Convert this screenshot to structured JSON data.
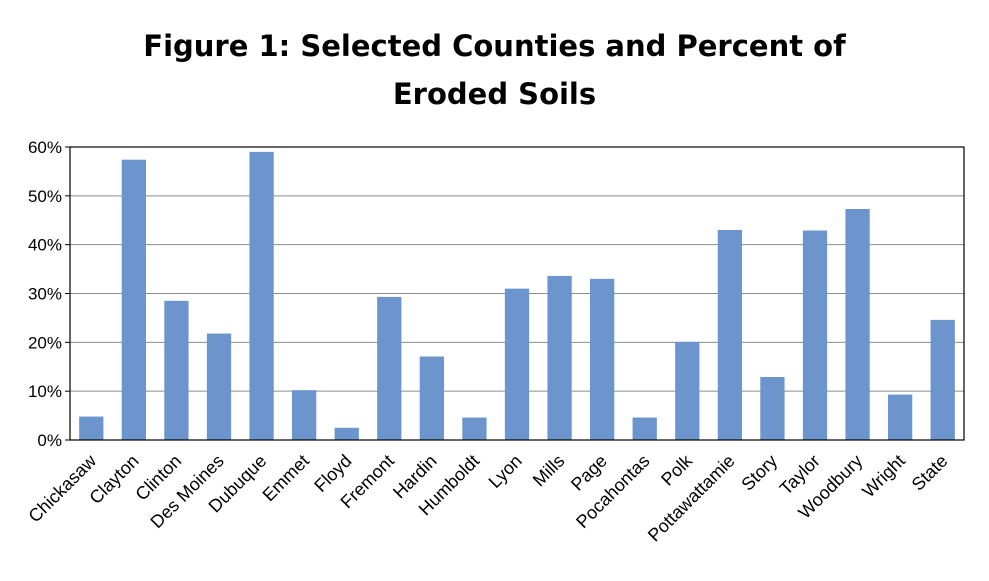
{
  "chart_data": {
    "type": "bar",
    "title_line1": "Figure 1: Selected Counties and Percent of",
    "title_line2": "Eroded Soils",
    "xlabel": "",
    "ylabel": "",
    "ylim": [
      0,
      60
    ],
    "yticks": [
      "0%",
      "10%",
      "20%",
      "30%",
      "40%",
      "50%",
      "60%"
    ],
    "grid": true,
    "legend": "none",
    "bar_color": "#6b95cc",
    "categories": [
      "Chickasaw",
      "Clayton",
      "Clinton",
      "Des Moines",
      "Dubuque",
      "Emmet",
      "Floyd",
      "Fremont",
      "Hardin",
      "Humboldt",
      "Lyon",
      "Mills",
      "Page",
      "Pocahontas",
      "Polk",
      "Pottawattamie",
      "Story",
      "Taylor",
      "Woodbury",
      "Wright",
      "State"
    ],
    "values": [
      4.8,
      57.4,
      28.5,
      21.8,
      59.0,
      10.2,
      2.5,
      29.3,
      17.1,
      4.6,
      31.0,
      33.6,
      33.0,
      4.6,
      20.1,
      43.0,
      12.9,
      42.9,
      47.3,
      9.3,
      24.6
    ]
  }
}
